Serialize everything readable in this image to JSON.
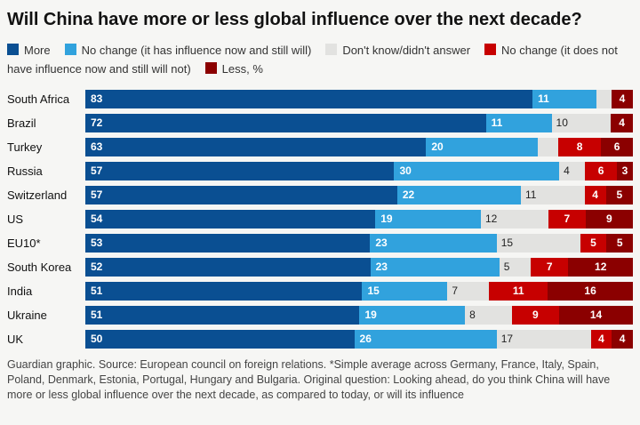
{
  "title": "Will China have more or less global influence over the next decade?",
  "footer": "Guardian graphic. Source: European council on foreign relations. *Simple average across Germany, France, Italy, Spain, Poland, Denmark, Estonia, Portugal, Hungary and Bulgaria. Original question: Looking ahead, do you think China will have more or less global influence over the next decade, as compared to today, or will its influence",
  "colors": {
    "more": "#0a4f92",
    "will": "#31a2dd",
    "dk": "#e2e2e0",
    "not": "#c70000",
    "less": "#8b0000",
    "background": "#f6f6f4"
  },
  "legend": [
    {
      "key": "more",
      "label": "More",
      "color": "#0a4f92"
    },
    {
      "key": "will",
      "label": "No change (it has influence now and still will)",
      "color": "#31a2dd"
    },
    {
      "key": "dk",
      "label": "Don't know/didn't answer",
      "color": "#e2e2e0"
    },
    {
      "key": "not",
      "label": "No change (it does not have influence now and still will not)",
      "color": "#c70000"
    },
    {
      "key": "less",
      "label": "Less, %",
      "color": "#8b0000"
    }
  ],
  "chart_data": {
    "type": "bar",
    "stacked": true,
    "orientation": "horizontal",
    "unit": "%",
    "categories": [
      "South Africa",
      "Brazil",
      "Turkey",
      "Russia",
      "Switzerland",
      "US",
      "EU10*",
      "South Korea",
      "India",
      "Ukraine",
      "UK"
    ],
    "series": [
      {
        "name": "More",
        "values": [
          83,
          72,
          63,
          57,
          57,
          54,
          53,
          52,
          51,
          51,
          50
        ]
      },
      {
        "name": "No change (it has influence now and still will)",
        "values": [
          11,
          11,
          20,
          30,
          22,
          19,
          23,
          23,
          15,
          19,
          26
        ]
      },
      {
        "name": "Don't know/didn't answer",
        "values": [
          2,
          10,
          3,
          4,
          11,
          12,
          15,
          5,
          7,
          8,
          17
        ]
      },
      {
        "name": "No change (it does not have influence now and still will not)",
        "values": [
          0,
          0,
          8,
          6,
          4,
          7,
          5,
          7,
          11,
          9,
          4
        ]
      },
      {
        "name": "Less",
        "values": [
          4,
          4,
          6,
          3,
          5,
          9,
          5,
          12,
          16,
          14,
          4
        ]
      }
    ],
    "rows": [
      {
        "label": "South Africa",
        "segments": [
          {
            "key": "more",
            "value": 83,
            "text": "83"
          },
          {
            "key": "will",
            "value": 11,
            "text": "11"
          },
          {
            "key": "dk",
            "value": 2,
            "text": ""
          },
          {
            "key": "less",
            "value": 4,
            "text": "4"
          }
        ]
      },
      {
        "label": "Brazil",
        "segments": [
          {
            "key": "more",
            "value": 72,
            "text": "72"
          },
          {
            "key": "will",
            "value": 11,
            "text": "11"
          },
          {
            "key": "dk",
            "value": 10,
            "text": "10"
          },
          {
            "key": "less",
            "value": 4,
            "text": "4"
          }
        ]
      },
      {
        "label": "Turkey",
        "segments": [
          {
            "key": "more",
            "value": 63,
            "text": "63"
          },
          {
            "key": "will",
            "value": 20,
            "text": "20"
          },
          {
            "key": "dk",
            "value": 3,
            "text": ""
          },
          {
            "key": "not",
            "value": 8,
            "text": "8"
          },
          {
            "key": "less",
            "value": 6,
            "text": "6"
          }
        ]
      },
      {
        "label": "Russia",
        "segments": [
          {
            "key": "more",
            "value": 57,
            "text": "57"
          },
          {
            "key": "will",
            "value": 30,
            "text": "30"
          },
          {
            "key": "dk",
            "value": 4,
            "text": "4"
          },
          {
            "key": "not",
            "value": 6,
            "text": "6"
          },
          {
            "key": "less",
            "value": 3,
            "text": "3"
          }
        ]
      },
      {
        "label": "Switzerland",
        "segments": [
          {
            "key": "more",
            "value": 57,
            "text": "57"
          },
          {
            "key": "will",
            "value": 22,
            "text": "22"
          },
          {
            "key": "dk",
            "value": 11,
            "text": "11"
          },
          {
            "key": "not",
            "value": 4,
            "text": "4"
          },
          {
            "key": "less",
            "value": 5,
            "text": "5"
          }
        ]
      },
      {
        "label": "US",
        "segments": [
          {
            "key": "more",
            "value": 54,
            "text": "54"
          },
          {
            "key": "will",
            "value": 19,
            "text": "19"
          },
          {
            "key": "dk",
            "value": 12,
            "text": "12"
          },
          {
            "key": "not",
            "value": 7,
            "text": "7"
          },
          {
            "key": "less",
            "value": 9,
            "text": "9"
          }
        ]
      },
      {
        "label": "EU10*",
        "segments": [
          {
            "key": "more",
            "value": 53,
            "text": "53"
          },
          {
            "key": "will",
            "value": 23,
            "text": "23"
          },
          {
            "key": "dk",
            "value": 15,
            "text": "15"
          },
          {
            "key": "not",
            "value": 5,
            "text": "5"
          },
          {
            "key": "less",
            "value": 5,
            "text": "5"
          }
        ]
      },
      {
        "label": "South Korea",
        "segments": [
          {
            "key": "more",
            "value": 52,
            "text": "52"
          },
          {
            "key": "will",
            "value": 23,
            "text": "23"
          },
          {
            "key": "dk",
            "value": 5,
            "text": "5"
          },
          {
            "key": "not",
            "value": 7,
            "text": "7"
          },
          {
            "key": "less",
            "value": 12,
            "text": "12"
          }
        ]
      },
      {
        "label": "India",
        "segments": [
          {
            "key": "more",
            "value": 51,
            "text": "51"
          },
          {
            "key": "will",
            "value": 15,
            "text": "15"
          },
          {
            "key": "dk",
            "value": 7,
            "text": "7"
          },
          {
            "key": "not",
            "value": 11,
            "text": "11"
          },
          {
            "key": "less",
            "value": 16,
            "text": "16"
          }
        ]
      },
      {
        "label": "Ukraine",
        "segments": [
          {
            "key": "more",
            "value": 51,
            "text": "51"
          },
          {
            "key": "will",
            "value": 19,
            "text": "19"
          },
          {
            "key": "dk",
            "value": 8,
            "text": "8"
          },
          {
            "key": "not",
            "value": 9,
            "text": "9"
          },
          {
            "key": "less",
            "value": 14,
            "text": "14"
          }
        ]
      },
      {
        "label": "UK",
        "segments": [
          {
            "key": "more",
            "value": 50,
            "text": "50"
          },
          {
            "key": "will",
            "value": 26,
            "text": "26"
          },
          {
            "key": "dk",
            "value": 17,
            "text": "17"
          },
          {
            "key": "not",
            "value": 4,
            "text": "4"
          },
          {
            "key": "less",
            "value": 4,
            "text": "4"
          }
        ]
      }
    ]
  }
}
